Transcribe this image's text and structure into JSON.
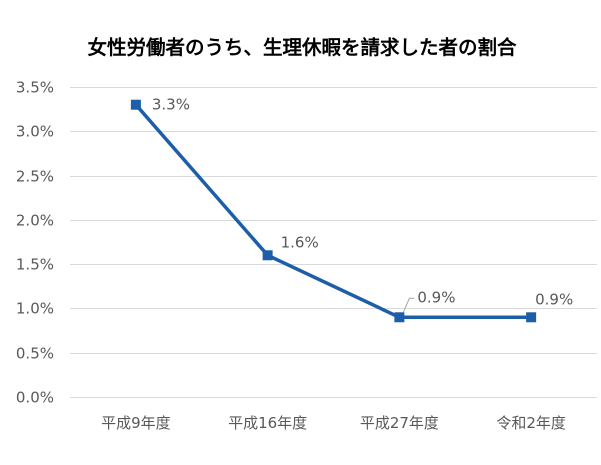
{
  "chart_data": {
    "type": "line",
    "title": "女性労働者のうち、生理休暇を請求した者の割合",
    "categories": [
      "平成9年度",
      "平成16年度",
      "平成27年度",
      "令和2年度"
    ],
    "values": [
      3.3,
      1.6,
      0.9,
      0.9
    ],
    "data_labels": [
      "3.3%",
      "1.6%",
      "0.9%",
      "0.9%"
    ],
    "ylim": [
      0,
      3.5
    ],
    "yticks": [
      0,
      0.5,
      1.0,
      1.5,
      2.0,
      2.5,
      3.0,
      3.5
    ],
    "ytick_labels": [
      "0.0%",
      "0.5%",
      "1.0%",
      "1.5%",
      "2.0%",
      "2.5%",
      "3.0%",
      "3.5%"
    ],
    "grid": true,
    "colors": {
      "line": "#1C5EA8",
      "grid": "#D9D9D9",
      "text": "#595959",
      "title": "#000000",
      "leader": "#A6A6A6"
    }
  }
}
